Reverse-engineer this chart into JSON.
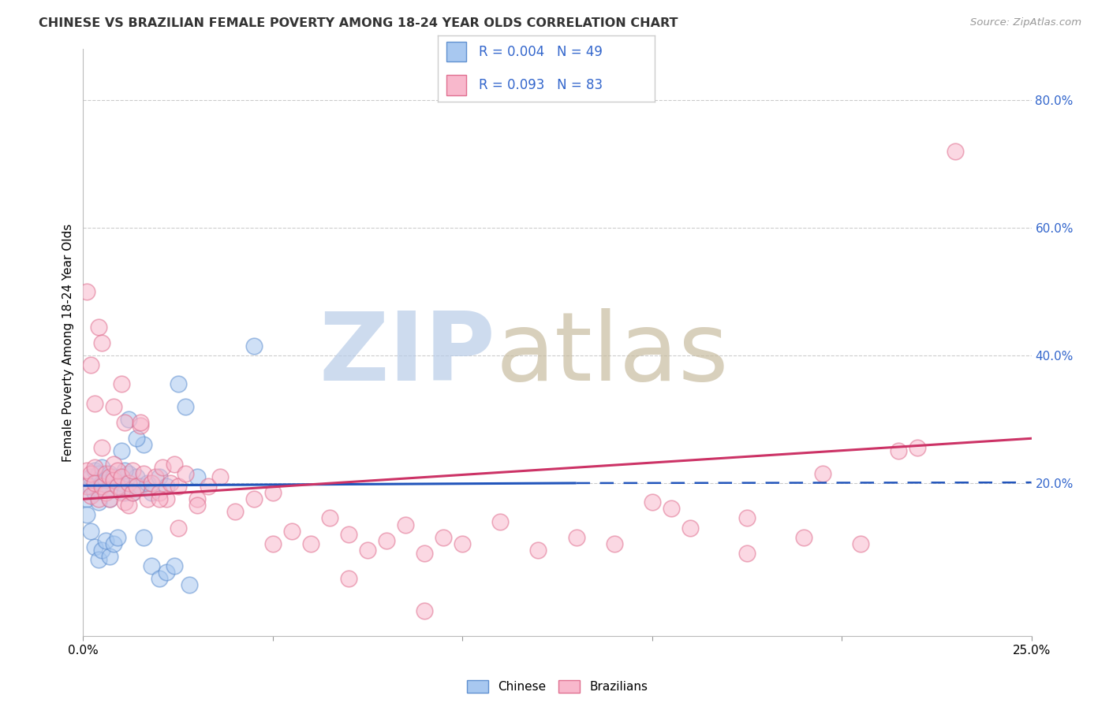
{
  "title": "CHINESE VS BRAZILIAN FEMALE POVERTY AMONG 18-24 YEAR OLDS CORRELATION CHART",
  "source": "Source: ZipAtlas.com",
  "ylabel": "Female Poverty Among 18-24 Year Olds",
  "xlim": [
    0.0,
    0.25
  ],
  "ylim": [
    -0.04,
    0.88
  ],
  "xtick_positions": [
    0.0,
    0.05,
    0.1,
    0.15,
    0.2,
    0.25
  ],
  "xtick_labels": [
    "0.0%",
    "",
    "",
    "",
    "",
    "25.0%"
  ],
  "ytick_right_positions": [
    0.2,
    0.4,
    0.6,
    0.8
  ],
  "ytick_right_labels": [
    "20.0%",
    "40.0%",
    "60.0%",
    "80.0%"
  ],
  "grid_color": "#cccccc",
  "bg_color": "#ffffff",
  "chinese_fill": "#a8c8f0",
  "chinese_edge": "#6090d0",
  "brazilians_fill": "#f8b8cc",
  "brazilians_edge": "#e07090",
  "chinese_line_color": "#2255bb",
  "brazilians_line_color": "#cc3366",
  "legend_text_color": "#3366cc",
  "title_color": "#333333",
  "source_color": "#999999",
  "watermark_zip_color": "#b8cce8",
  "watermark_atlas_color": "#c8bca0",
  "scatter_size": 220,
  "scatter_alpha": 0.55,
  "scatter_lw": 1.2,
  "chinese_x": [
    0.001,
    0.002,
    0.002,
    0.003,
    0.003,
    0.004,
    0.004,
    0.005,
    0.005,
    0.006,
    0.006,
    0.007,
    0.007,
    0.008,
    0.009,
    0.01,
    0.011,
    0.012,
    0.013,
    0.014,
    0.015,
    0.016,
    0.017,
    0.018,
    0.02,
    0.022,
    0.001,
    0.002,
    0.003,
    0.004,
    0.005,
    0.006,
    0.007,
    0.008,
    0.009,
    0.01,
    0.011,
    0.012,
    0.014,
    0.016,
    0.018,
    0.02,
    0.022,
    0.024,
    0.025,
    0.027,
    0.028,
    0.03,
    0.045
  ],
  "chinese_y": [
    0.175,
    0.195,
    0.21,
    0.22,
    0.185,
    0.215,
    0.17,
    0.2,
    0.225,
    0.19,
    0.205,
    0.215,
    0.175,
    0.21,
    0.195,
    0.2,
    0.185,
    0.215,
    0.185,
    0.21,
    0.195,
    0.26,
    0.2,
    0.185,
    0.21,
    0.195,
    0.15,
    0.125,
    0.1,
    0.08,
    0.095,
    0.11,
    0.085,
    0.105,
    0.115,
    0.25,
    0.22,
    0.3,
    0.27,
    0.115,
    0.07,
    0.05,
    0.06,
    0.07,
    0.355,
    0.32,
    0.04,
    0.21,
    0.415
  ],
  "braz_x": [
    0.001,
    0.001,
    0.002,
    0.002,
    0.003,
    0.003,
    0.004,
    0.004,
    0.005,
    0.005,
    0.006,
    0.006,
    0.007,
    0.007,
    0.008,
    0.008,
    0.009,
    0.009,
    0.01,
    0.01,
    0.011,
    0.011,
    0.012,
    0.012,
    0.013,
    0.013,
    0.014,
    0.015,
    0.016,
    0.017,
    0.018,
    0.019,
    0.02,
    0.021,
    0.022,
    0.023,
    0.024,
    0.025,
    0.027,
    0.03,
    0.033,
    0.036,
    0.04,
    0.045,
    0.05,
    0.055,
    0.06,
    0.065,
    0.07,
    0.075,
    0.08,
    0.085,
    0.09,
    0.095,
    0.1,
    0.11,
    0.12,
    0.13,
    0.14,
    0.15,
    0.16,
    0.175,
    0.19,
    0.205,
    0.22,
    0.001,
    0.002,
    0.003,
    0.005,
    0.008,
    0.01,
    0.015,
    0.02,
    0.025,
    0.03,
    0.05,
    0.07,
    0.09,
    0.155,
    0.175,
    0.195,
    0.215,
    0.23
  ],
  "braz_y": [
    0.22,
    0.195,
    0.215,
    0.18,
    0.225,
    0.2,
    0.445,
    0.175,
    0.255,
    0.195,
    0.185,
    0.215,
    0.21,
    0.175,
    0.205,
    0.23,
    0.195,
    0.22,
    0.185,
    0.21,
    0.295,
    0.17,
    0.2,
    0.165,
    0.185,
    0.22,
    0.195,
    0.29,
    0.215,
    0.175,
    0.2,
    0.21,
    0.185,
    0.225,
    0.175,
    0.2,
    0.23,
    0.195,
    0.215,
    0.175,
    0.195,
    0.21,
    0.155,
    0.175,
    0.185,
    0.125,
    0.105,
    0.145,
    0.12,
    0.095,
    0.11,
    0.135,
    0.09,
    0.115,
    0.105,
    0.14,
    0.095,
    0.115,
    0.105,
    0.17,
    0.13,
    0.09,
    0.115,
    0.105,
    0.255,
    0.5,
    0.385,
    0.325,
    0.42,
    0.32,
    0.355,
    0.295,
    0.175,
    0.13,
    0.165,
    0.105,
    0.05,
    0.0,
    0.16,
    0.145,
    0.215,
    0.25,
    0.72
  ]
}
